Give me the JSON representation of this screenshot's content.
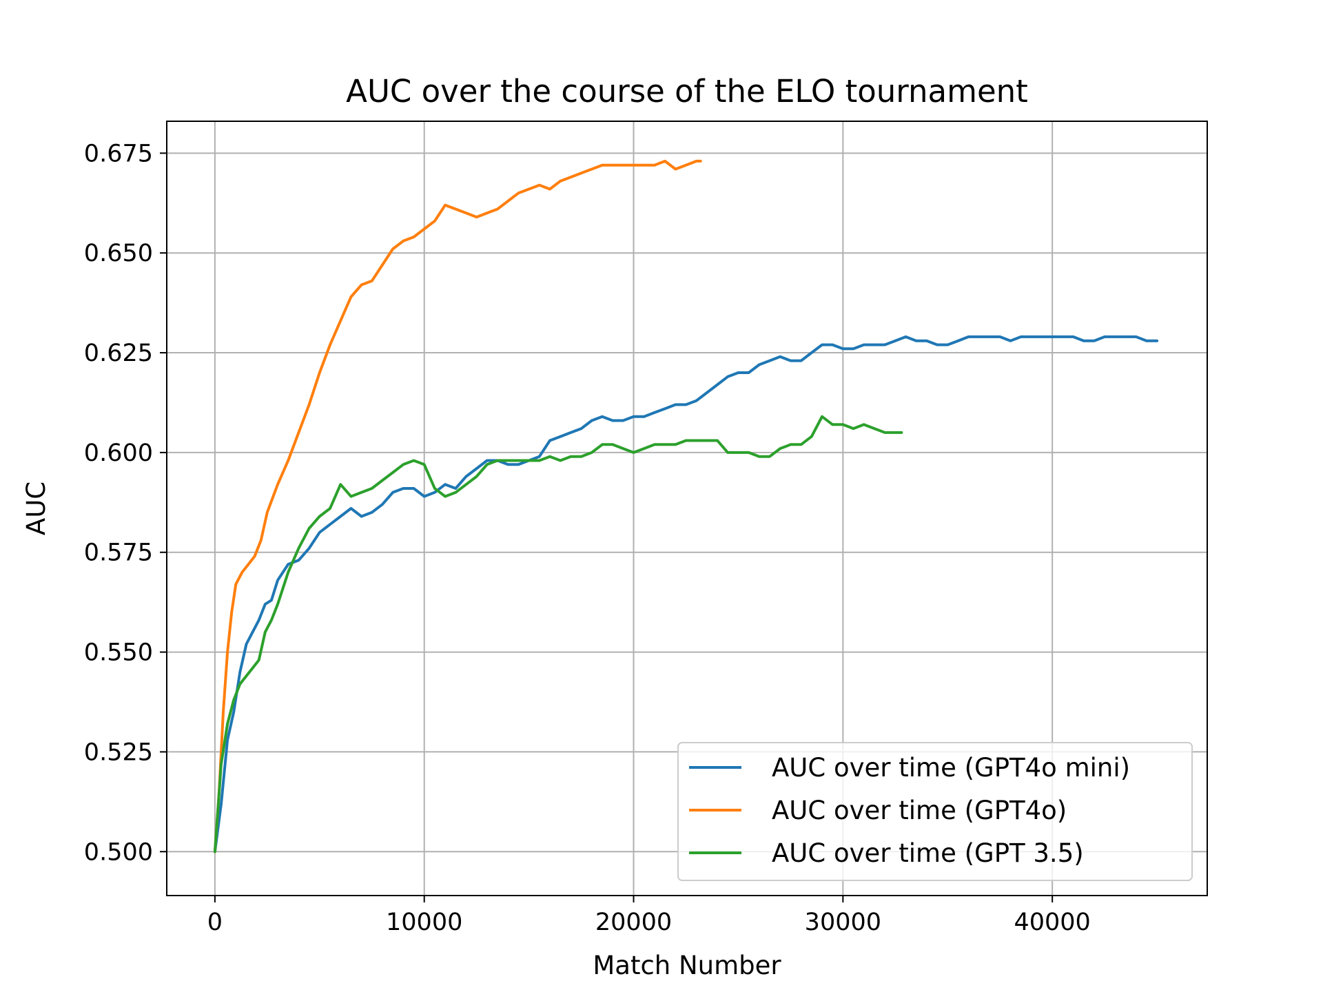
{
  "chart_data": {
    "type": "line",
    "title": "AUC over the course of the ELO tournament",
    "xlabel": "Match Number",
    "ylabel": "AUC",
    "xlim": [
      -2300,
      47400
    ],
    "ylim": [
      0.489,
      0.683
    ],
    "xticks": [
      0,
      10000,
      20000,
      30000,
      40000
    ],
    "xtick_labels": [
      "0",
      "10000",
      "20000",
      "30000",
      "40000"
    ],
    "yticks": [
      0.5,
      0.525,
      0.55,
      0.575,
      0.6,
      0.625,
      0.65,
      0.675
    ],
    "ytick_labels": [
      "0.500",
      "0.525",
      "0.550",
      "0.575",
      "0.600",
      "0.625",
      "0.650",
      "0.675"
    ],
    "grid": true,
    "legend_position": "lower-right",
    "series": [
      {
        "name": "AUC over time (GPT4o mini)",
        "color": "#1f77b4",
        "x": [
          0,
          300,
          600,
          900,
          1200,
          1500,
          1800,
          2100,
          2400,
          2700,
          3000,
          3500,
          4000,
          4500,
          5000,
          5500,
          6000,
          6500,
          7000,
          7500,
          8000,
          8500,
          9000,
          9500,
          10000,
          10500,
          11000,
          11500,
          12000,
          12500,
          13000,
          13500,
          14000,
          14500,
          15000,
          15500,
          16000,
          16500,
          17000,
          17500,
          18000,
          18500,
          19000,
          19500,
          20000,
          20500,
          21000,
          21500,
          22000,
          22500,
          23000,
          23500,
          24000,
          24500,
          25000,
          25500,
          26000,
          26500,
          27000,
          27500,
          28000,
          28500,
          29000,
          29500,
          30000,
          30500,
          31000,
          31500,
          32000,
          32500,
          33000,
          33500,
          34000,
          34500,
          35000,
          35500,
          36000,
          36500,
          37000,
          37500,
          38000,
          38500,
          39000,
          39500,
          40000,
          40500,
          41000,
          41500,
          42000,
          42500,
          43000,
          43500,
          44000,
          44500,
          45000
        ],
        "y": [
          0.5,
          0.512,
          0.528,
          0.535,
          0.545,
          0.552,
          0.555,
          0.558,
          0.562,
          0.563,
          0.568,
          0.572,
          0.573,
          0.576,
          0.58,
          0.582,
          0.584,
          0.586,
          0.584,
          0.585,
          0.587,
          0.59,
          0.591,
          0.591,
          0.589,
          0.59,
          0.592,
          0.591,
          0.594,
          0.596,
          0.598,
          0.598,
          0.597,
          0.597,
          0.598,
          0.599,
          0.603,
          0.604,
          0.605,
          0.606,
          0.608,
          0.609,
          0.608,
          0.608,
          0.609,
          0.609,
          0.61,
          0.611,
          0.612,
          0.612,
          0.613,
          0.615,
          0.617,
          0.619,
          0.62,
          0.62,
          0.622,
          0.623,
          0.624,
          0.623,
          0.623,
          0.625,
          0.627,
          0.627,
          0.626,
          0.626,
          0.627,
          0.627,
          0.627,
          0.628,
          0.629,
          0.628,
          0.628,
          0.627,
          0.627,
          0.628,
          0.629,
          0.629,
          0.629,
          0.629,
          0.628,
          0.629,
          0.629,
          0.629,
          0.629,
          0.629,
          0.629,
          0.628,
          0.628,
          0.629,
          0.629,
          0.629,
          0.629,
          0.628,
          0.628
        ]
      },
      {
        "name": "AUC over time (GPT4o)",
        "color": "#ff7f0e",
        "x": [
          0,
          200,
          400,
          600,
          800,
          1000,
          1300,
          1600,
          1900,
          2200,
          2500,
          3000,
          3500,
          4000,
          4500,
          5000,
          5500,
          6000,
          6500,
          7000,
          7500,
          8000,
          8500,
          9000,
          9500,
          10000,
          10500,
          11000,
          11500,
          12000,
          12500,
          13000,
          13500,
          14000,
          14500,
          15000,
          15500,
          16000,
          16500,
          17000,
          17500,
          18000,
          18500,
          19000,
          19500,
          20000,
          20500,
          21000,
          21500,
          22000,
          22500,
          23000,
          23200
        ],
        "y": [
          0.5,
          0.515,
          0.535,
          0.55,
          0.56,
          0.567,
          0.57,
          0.572,
          0.574,
          0.578,
          0.585,
          0.592,
          0.598,
          0.605,
          0.612,
          0.62,
          0.627,
          0.633,
          0.639,
          0.642,
          0.643,
          0.647,
          0.651,
          0.653,
          0.654,
          0.656,
          0.658,
          0.662,
          0.661,
          0.66,
          0.659,
          0.66,
          0.661,
          0.663,
          0.665,
          0.666,
          0.667,
          0.666,
          0.668,
          0.669,
          0.67,
          0.671,
          0.672,
          0.672,
          0.672,
          0.672,
          0.672,
          0.672,
          0.673,
          0.671,
          0.672,
          0.673,
          0.673
        ]
      },
      {
        "name": "AUC over time (GPT 3.5)",
        "color": "#2ca02c",
        "x": [
          0,
          300,
          600,
          900,
          1200,
          1500,
          1800,
          2100,
          2400,
          2700,
          3000,
          3500,
          4000,
          4500,
          5000,
          5500,
          6000,
          6500,
          7000,
          7500,
          8000,
          8500,
          9000,
          9500,
          10000,
          10500,
          11000,
          11500,
          12000,
          12500,
          13000,
          13500,
          14000,
          14500,
          15000,
          15500,
          16000,
          16500,
          17000,
          17500,
          18000,
          18500,
          19000,
          19500,
          20000,
          20500,
          21000,
          21500,
          22000,
          22500,
          23000,
          23500,
          24000,
          24500,
          25000,
          25500,
          26000,
          26500,
          27000,
          27500,
          28000,
          28500,
          29000,
          29500,
          30000,
          30500,
          31000,
          31500,
          32000,
          32500,
          32800
        ],
        "y": [
          0.5,
          0.522,
          0.532,
          0.538,
          0.542,
          0.544,
          0.546,
          0.548,
          0.555,
          0.558,
          0.562,
          0.57,
          0.576,
          0.581,
          0.584,
          0.586,
          0.592,
          0.589,
          0.59,
          0.591,
          0.593,
          0.595,
          0.597,
          0.598,
          0.597,
          0.591,
          0.589,
          0.59,
          0.592,
          0.594,
          0.597,
          0.598,
          0.598,
          0.598,
          0.598,
          0.598,
          0.599,
          0.598,
          0.599,
          0.599,
          0.6,
          0.602,
          0.602,
          0.601,
          0.6,
          0.601,
          0.602,
          0.602,
          0.602,
          0.603,
          0.603,
          0.603,
          0.603,
          0.6,
          0.6,
          0.6,
          0.599,
          0.599,
          0.601,
          0.602,
          0.602,
          0.604,
          0.609,
          0.607,
          0.607,
          0.606,
          0.607,
          0.606,
          0.605,
          0.605,
          0.605
        ]
      }
    ]
  }
}
